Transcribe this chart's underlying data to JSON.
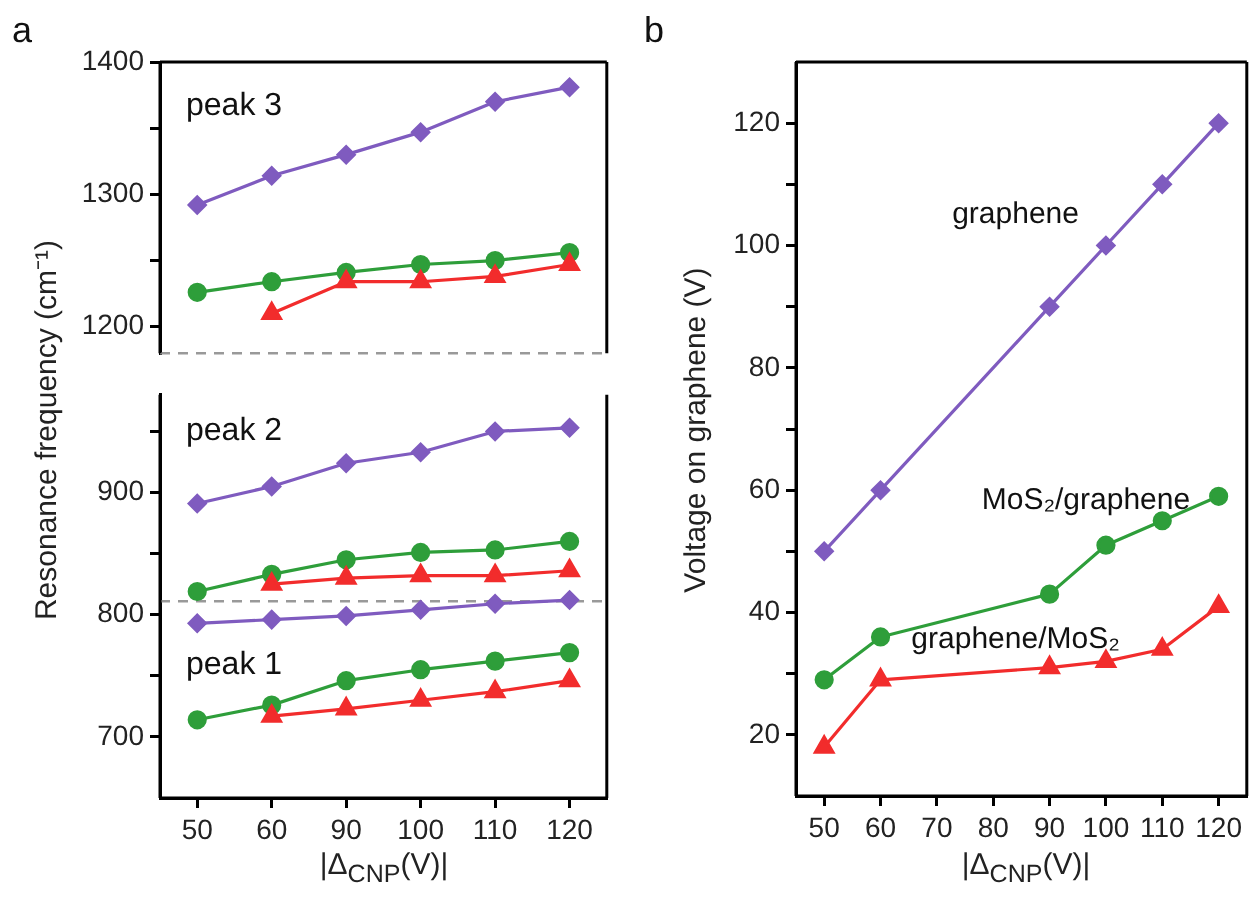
{
  "chart_data": [
    {
      "type": "line",
      "title": "a",
      "categories": [
        "50",
        "60",
        "90",
        "100",
        "110",
        "120"
      ],
      "ylim": [
        1180,
        1400
      ],
      "yticks": [
        1200,
        {
          "value": 1250,
          "label": null
        },
        1300,
        {
          "value": 1350,
          "label": null
        },
        1400
      ],
      "grid": false,
      "legend": false,
      "tick_labels": "y",
      "series": [
        {
          "color": "#7f5bbf",
          "marker": "diamond",
          "values": [
            1292,
            1314,
            1330,
            1347,
            1370,
            1381
          ]
        },
        {
          "color": "#2e9e3a",
          "marker": "circle",
          "values": [
            1226,
            1234,
            1241,
            1247,
            1250,
            1256
          ]
        },
        {
          "color": "#f22c2c",
          "marker": "triangle",
          "values": [
            null,
            1210,
            1234,
            1234,
            1238,
            1247
          ]
        }
      ],
      "annotations": [
        "peak 3"
      ],
      "ref_lines": [
        {
          "axis": "y",
          "value": 1180,
          "color": "#999999",
          "line_style": "dashed"
        }
      ]
    },
    {
      "type": "line",
      "ylabel": "Resonance frequency (cm⁻¹)",
      "xlabel": "|Δ$_{CNP}$(V)|",
      "categories": [
        "50",
        "60",
        "90",
        "100",
        "110",
        "120"
      ],
      "ylim": [
        650,
        980
      ],
      "yticks": [
        700,
        {
          "value": 750,
          "label": null
        },
        800,
        {
          "value": 850,
          "label": null
        },
        900,
        {
          "value": 950,
          "label": null
        }
      ],
      "grid": false,
      "legend": false,
      "series": [
        {
          "color": "#7f5bbf",
          "marker": "diamond",
          "values": [
            891,
            905,
            924,
            933,
            950,
            953
          ]
        },
        {
          "color": "#2e9e3a",
          "marker": "circle",
          "values": [
            819,
            833,
            845,
            851,
            853,
            860
          ]
        },
        {
          "color": "#f22c2c",
          "marker": "triangle",
          "values": [
            null,
            825,
            830,
            832,
            832,
            836
          ]
        },
        {
          "color": "#7f5bbf",
          "marker": "diamond",
          "values": [
            793,
            796,
            799,
            804,
            809,
            812
          ]
        },
        {
          "color": "#2e9e3a",
          "marker": "circle",
          "values": [
            714,
            726,
            746,
            755,
            762,
            769
          ]
        },
        {
          "color": "#f22c2c",
          "marker": "triangle",
          "values": [
            null,
            717,
            723,
            730,
            737,
            746
          ]
        }
      ],
      "annotations": [
        "peak 2",
        "peak 1"
      ],
      "ref_lines": [
        {
          "axis": "y",
          "value": 811,
          "color": "#999999",
          "line_style": "dashed"
        }
      ]
    },
    {
      "type": "line",
      "title": "b",
      "ylabel": "Voltage on graphene (V)",
      "xlabel": "|Δ$_{CNP}$(V)|",
      "x": [
        50,
        60,
        90,
        100,
        110,
        120
      ],
      "xlim": [
        45,
        125
      ],
      "xticks": [
        50,
        60,
        70,
        80,
        90,
        100,
        110,
        120
      ],
      "ylim": [
        10,
        130
      ],
      "yticks": [
        20,
        {
          "value": 30,
          "label": null
        },
        40,
        {
          "value": 50,
          "label": null
        },
        60,
        {
          "value": 70,
          "label": null
        },
        80,
        {
          "value": 90,
          "label": null
        },
        100,
        {
          "value": 110,
          "label": null
        },
        120
      ],
      "grid": false,
      "legend": false,
      "series": [
        {
          "name": "graphene",
          "color": "#7f5bbf",
          "marker": "diamond",
          "values": [
            50,
            60,
            90,
            100,
            110,
            120
          ]
        },
        {
          "name": "MoS₂/graphene",
          "color": "#2e9e3a",
          "marker": "circle",
          "values": [
            29,
            36,
            43,
            51,
            55,
            59
          ]
        },
        {
          "name": "graphene/MoS₂",
          "color": "#f22c2c",
          "marker": "triangle",
          "values": [
            18,
            29,
            31,
            32,
            34,
            41
          ]
        }
      ]
    }
  ]
}
